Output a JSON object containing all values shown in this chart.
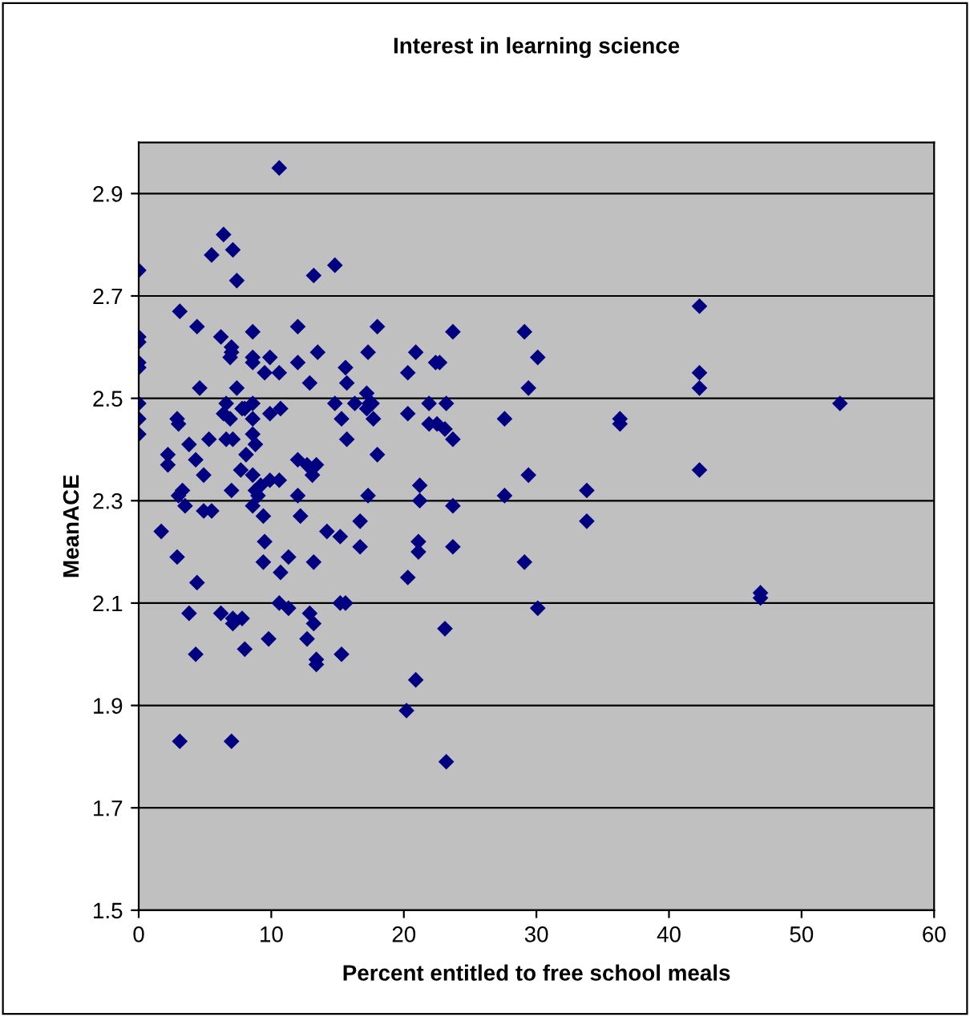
{
  "chart_data": {
    "type": "scatter",
    "title": "Interest in learning science",
    "xlabel": "Percent entitled to free school meals",
    "ylabel": "MeanACE",
    "xlim": [
      0,
      60
    ],
    "xticks": [
      0,
      10,
      20,
      30,
      40,
      50,
      60
    ],
    "ylim": [
      1.5,
      3.0
    ],
    "yticks": [
      1.5,
      1.7,
      1.9,
      2.1,
      2.3,
      2.5,
      2.7,
      2.9
    ],
    "grid": "y",
    "marker": "diamond",
    "legend": false,
    "series": [
      {
        "color": "#000080",
        "x": [
          0,
          0,
          0,
          0,
          0,
          0,
          0,
          0,
          1.7,
          2.2,
          2.2,
          2.9,
          2.9,
          3.0,
          3.1,
          3.1,
          3.0,
          3.3,
          3.5,
          3.8,
          3.8,
          4.3,
          4.4,
          4.3,
          4.6,
          4.4,
          4.9,
          4.9,
          5.5,
          5.3,
          5.5,
          6.2,
          6.4,
          6.2,
          6.4,
          6.6,
          6.6,
          7.1,
          6.9,
          7.0,
          7.0,
          6.9,
          7.1,
          7.0,
          7.1,
          7.1,
          7.8,
          7.0,
          7.4,
          7.4,
          7.7,
          7.8,
          8.0,
          8.0,
          8.1,
          8.6,
          8.6,
          8.6,
          8.6,
          8.6,
          8.6,
          8.8,
          8.6,
          8.8,
          9.0,
          8.6,
          9.2,
          9.4,
          9.5,
          9.4,
          9.5,
          9.9,
          9.9,
          9.9,
          9.8,
          10.6,
          10.6,
          10.7,
          10.6,
          10.7,
          10.6,
          11.3,
          11.3,
          12.0,
          12.0,
          12.0,
          12.0,
          13.2,
          14.8,
          12.9,
          13.5,
          12.7,
          13.4,
          13.1,
          12.2,
          13.2,
          14.2,
          15.2,
          16.7,
          16.7,
          12.9,
          13.2,
          12.7,
          13.4,
          13.4,
          15.2,
          15.6,
          15.3,
          15.6,
          15.7,
          14.8,
          15.3,
          15.7,
          16.3,
          18.0,
          17.3,
          17.2,
          17.2,
          17.4,
          17.6,
          17.7,
          18.0,
          17.3,
          20.3,
          20.9,
          20.3,
          21.9,
          21.9,
          22.5,
          23.2,
          23.1,
          23.7,
          22.4,
          22.7,
          23.7,
          21.2,
          21.2,
          23.7,
          21.1,
          21.1,
          23.7,
          20.3,
          23.1,
          20.9,
          20.2,
          23.2,
          27.6,
          27.6,
          29.1,
          30.1,
          29.4,
          29.4,
          29.1,
          30.1,
          33.8,
          33.8,
          36.3,
          36.3,
          42.3,
          42.3,
          42.3,
          42.3,
          46.9,
          46.9,
          52.9
        ],
        "values": [
          2.75,
          2.62,
          2.61,
          2.57,
          2.56,
          2.49,
          2.46,
          2.43,
          2.24,
          2.39,
          2.37,
          2.19,
          2.46,
          2.45,
          2.67,
          1.83,
          2.31,
          2.32,
          2.29,
          2.41,
          2.08,
          2.38,
          2.64,
          2.0,
          2.52,
          2.14,
          2.35,
          2.28,
          2.28,
          2.42,
          2.78,
          2.62,
          2.82,
          2.08,
          2.47,
          2.49,
          2.42,
          2.42,
          2.46,
          2.6,
          2.59,
          2.58,
          2.79,
          2.32,
          2.06,
          2.07,
          2.07,
          1.83,
          2.73,
          2.52,
          2.36,
          2.48,
          2.48,
          2.01,
          2.39,
          2.63,
          2.58,
          2.57,
          2.49,
          2.46,
          2.43,
          2.41,
          2.35,
          2.32,
          2.31,
          2.29,
          2.33,
          2.27,
          2.22,
          2.18,
          2.55,
          2.58,
          2.47,
          2.34,
          2.03,
          2.95,
          2.55,
          2.48,
          2.34,
          2.16,
          2.1,
          2.09,
          2.19,
          2.64,
          2.38,
          2.31,
          2.57,
          2.74,
          2.76,
          2.53,
          2.59,
          2.37,
          2.37,
          2.35,
          2.27,
          2.18,
          2.24,
          2.23,
          2.26,
          2.21,
          2.08,
          2.06,
          2.03,
          1.99,
          1.98,
          2.1,
          2.1,
          2.0,
          2.56,
          2.53,
          2.49,
          2.46,
          2.42,
          2.49,
          2.64,
          2.59,
          2.51,
          2.48,
          2.49,
          2.49,
          2.46,
          2.39,
          2.31,
          2.55,
          2.59,
          2.47,
          2.49,
          2.45,
          2.45,
          2.49,
          2.44,
          2.42,
          2.57,
          2.57,
          2.63,
          2.33,
          2.3,
          2.29,
          2.22,
          2.2,
          2.21,
          2.15,
          2.05,
          1.95,
          1.89,
          1.79,
          2.46,
          2.31,
          2.63,
          2.58,
          2.52,
          2.35,
          2.18,
          2.09,
          2.32,
          2.26,
          2.46,
          2.45,
          2.68,
          2.55,
          2.52,
          2.36,
          2.12,
          2.11,
          2.49
        ]
      }
    ]
  }
}
